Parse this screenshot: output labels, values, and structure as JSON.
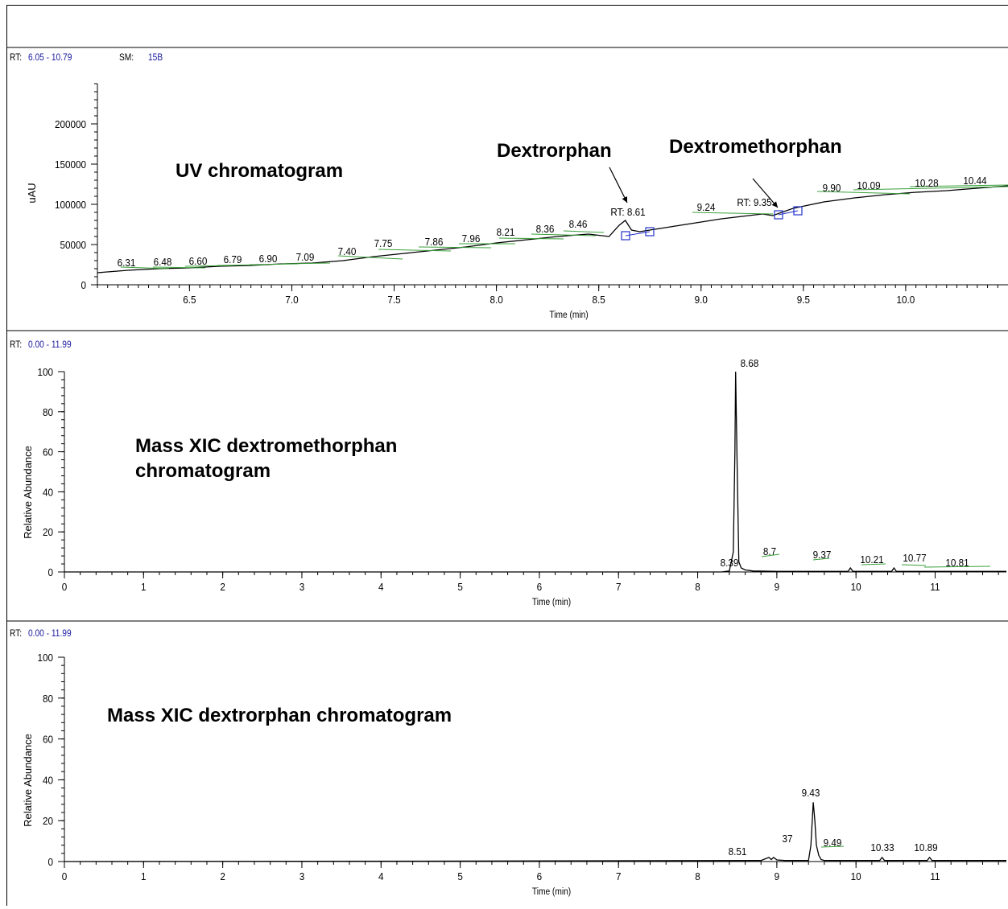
{
  "chart_data": [
    {
      "type": "line",
      "header": {
        "rt_label": "RT:",
        "rt_value": "6.05 - 10.79",
        "sm_label": "SM:",
        "sm_value": "15B"
      },
      "title": "UV chromatogram",
      "xlabel": "Time (min)",
      "ylabel": "uAU",
      "xlim": [
        6.05,
        10.5
      ],
      "ylim": [
        0,
        250000
      ],
      "xticks": [
        "6.5",
        "7.0",
        "7.5",
        "8.0",
        "8.5",
        "9.0",
        "9.5",
        "10.0"
      ],
      "yticks": [
        "0",
        "50000",
        "100000",
        "150000",
        "200000"
      ],
      "series": [
        {
          "x": [
            6.05,
            6.2,
            6.35,
            6.5,
            6.65,
            6.8,
            6.95,
            7.1,
            7.25,
            7.4,
            7.55,
            7.7,
            7.85,
            8.0,
            8.15,
            8.3,
            8.45,
            8.55,
            8.6,
            8.63,
            8.66,
            8.7,
            8.8,
            8.9,
            9.0,
            9.1,
            9.2,
            9.3,
            9.35,
            9.45,
            9.6,
            9.75,
            9.9,
            10.05,
            10.2,
            10.35,
            10.5
          ],
          "values": [
            15000,
            18000,
            20000,
            21000,
            23000,
            24000,
            26000,
            27000,
            30000,
            35000,
            39000,
            43000,
            47000,
            52000,
            56000,
            60000,
            63000,
            60000,
            74000,
            80000,
            68000,
            66000,
            70000,
            74000,
            78000,
            82000,
            85000,
            88000,
            86000,
            95000,
            103000,
            108000,
            112000,
            115000,
            117000,
            120000,
            123000
          ]
        }
      ],
      "peak_labels": [
        "6.31",
        "6.48",
        "6.60",
        "6.79",
        "6.90",
        "7.09",
        "7.40",
        "7.75",
        "7.86",
        "7.96",
        "8.21",
        "8.36",
        "8.46",
        "9.24",
        "9.90",
        "10.09",
        "10.28",
        "10.44"
      ],
      "rt_labels": [
        "RT: 8.61",
        "RT: 9.35"
      ],
      "annotations": [
        "Dextrorphan",
        "Dextromethorphan"
      ]
    },
    {
      "type": "line",
      "header": {
        "rt_label": "RT:",
        "rt_value": "0.00 - 11.99"
      },
      "title": "Mass XIC dextromethorphan\nchromatogram",
      "xlabel": "Time (min)",
      "ylabel": "Relative Abundance",
      "xlim": [
        0,
        11.9
      ],
      "ylim": [
        0,
        100
      ],
      "xticks": [
        "0",
        "1",
        "2",
        "3",
        "4",
        "5",
        "6",
        "7",
        "8",
        "9",
        "10",
        "11"
      ],
      "yticks": [
        "0",
        "20",
        "40",
        "60",
        "80",
        "100"
      ],
      "series": [
        {
          "x": [
            0,
            8.3,
            8.4,
            8.45,
            8.47,
            8.48,
            8.5,
            8.52,
            8.55,
            8.6,
            8.7,
            9.0,
            9.9,
            9.93,
            9.96,
            10.0,
            10.45,
            10.48,
            10.51,
            10.6,
            11.9
          ],
          "values": [
            0,
            0,
            0.5,
            10,
            60,
            100,
            50,
            5,
            2,
            1,
            0.5,
            0.3,
            0.3,
            2,
            0.3,
            0.3,
            0.3,
            2,
            0.3,
            0.3,
            0.3
          ]
        }
      ],
      "peak_labels": [
        "8.68",
        "8.39",
        "8.7",
        "9.37",
        "10.21",
        "10.77",
        "10.81"
      ]
    },
    {
      "type": "line",
      "header": {
        "rt_label": "RT:",
        "rt_value": "0.00 - 11.99"
      },
      "title": "Mass XIC dextrorphan chromatogram",
      "xlabel": "Time (min)",
      "ylabel": "Relative Abundance",
      "xlim": [
        0,
        11.9
      ],
      "ylim": [
        0,
        100
      ],
      "xticks": [
        "0",
        "1",
        "2",
        "3",
        "4",
        "5",
        "6",
        "7",
        "8",
        "9",
        "10",
        "11"
      ],
      "yticks": [
        "0",
        "20",
        "40",
        "60",
        "80",
        "100"
      ],
      "series": [
        {
          "x": [
            0,
            4.5,
            8.8,
            8.9,
            8.93,
            8.96,
            9.0,
            9.1,
            9.4,
            9.43,
            9.46,
            9.48,
            9.5,
            9.53,
            9.56,
            9.6,
            10.3,
            10.33,
            10.36,
            10.9,
            10.93,
            10.96,
            11.9
          ],
          "values": [
            0,
            0.2,
            0.5,
            2,
            1,
            2,
            0.8,
            0.5,
            0.5,
            8,
            29,
            20,
            8,
            3,
            1,
            0.5,
            0.5,
            2,
            0.5,
            0.5,
            2,
            0.5,
            0.5
          ]
        }
      ],
      "peak_labels": [
        "9.43",
        "8.51",
        "37",
        "9.49",
        "10.33",
        "10.89"
      ]
    }
  ]
}
